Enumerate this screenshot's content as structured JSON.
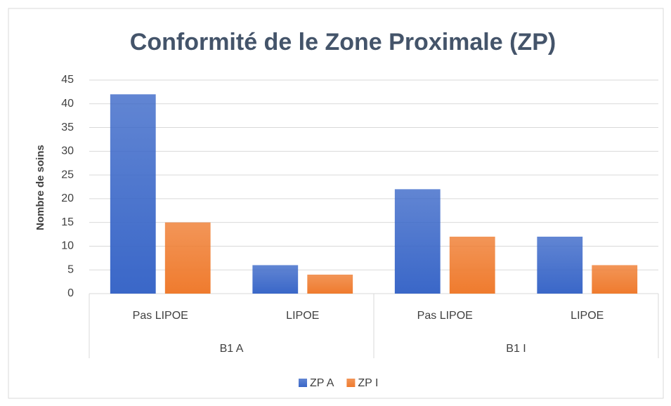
{
  "chart_data": {
    "type": "bar",
    "title": "Conformité de le Zone Proximale (ZP)",
    "y_label": "Nombre de soins",
    "groups": [
      {
        "name": "B1 A",
        "categories": [
          "Pas LIPOE",
          "LIPOE"
        ]
      },
      {
        "name": "B1 I",
        "categories": [
          "Pas LIPOE",
          "LIPOE"
        ]
      }
    ],
    "series": [
      {
        "name": "ZP A",
        "color": "#3a67c8",
        "values": [
          42,
          6,
          22,
          12
        ]
      },
      {
        "name": "ZP I",
        "color": "#ef7b2e",
        "values": [
          15,
          4,
          12,
          6
        ]
      }
    ],
    "ylim": [
      0,
      45
    ],
    "yticks": [
      0,
      5,
      10,
      15,
      20,
      25,
      30,
      35,
      40,
      45
    ],
    "grid": true,
    "legend": "bottom"
  }
}
